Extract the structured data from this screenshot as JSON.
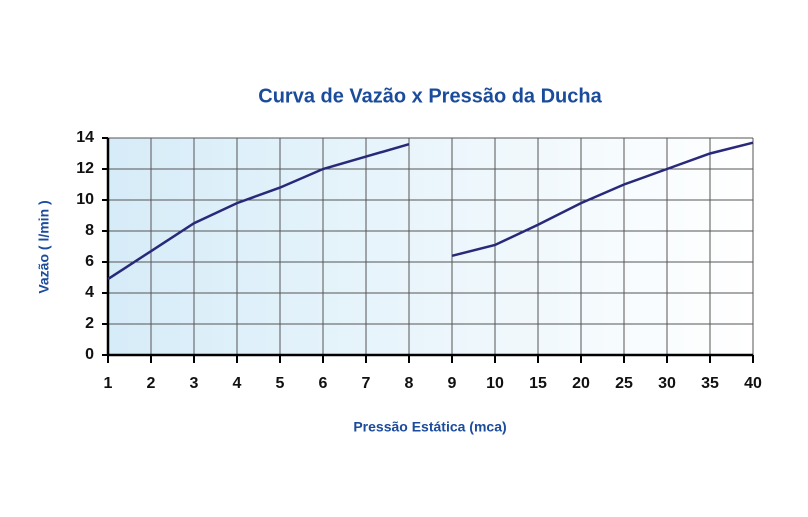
{
  "chart_data": {
    "type": "line",
    "title": "Curva de Vazão x Pressão da Ducha",
    "x_label": "Pressão Estática (mca)",
    "y_label": "Vazão ( l/min )",
    "categories": [
      "1",
      "2",
      "3",
      "4",
      "5",
      "6",
      "7",
      "8",
      "9",
      "10",
      "15",
      "20",
      "25",
      "30",
      "35",
      "40"
    ],
    "series": [
      {
        "color": "#29297a",
        "values": [
          4.9,
          6.7,
          8.5,
          9.8,
          10.8,
          12.0,
          12.8,
          13.6,
          null,
          null,
          null,
          null,
          null,
          null,
          null,
          null
        ]
      },
      {
        "color": "#29297a",
        "values": [
          null,
          null,
          null,
          null,
          null,
          null,
          null,
          null,
          6.4,
          7.1,
          8.4,
          9.8,
          11.0,
          12.0,
          13.0,
          13.7
        ]
      }
    ],
    "ylim": [
      0,
      14
    ],
    "yticks": [
      0,
      2,
      4,
      6,
      8,
      10,
      12,
      14
    ],
    "grid": true
  }
}
